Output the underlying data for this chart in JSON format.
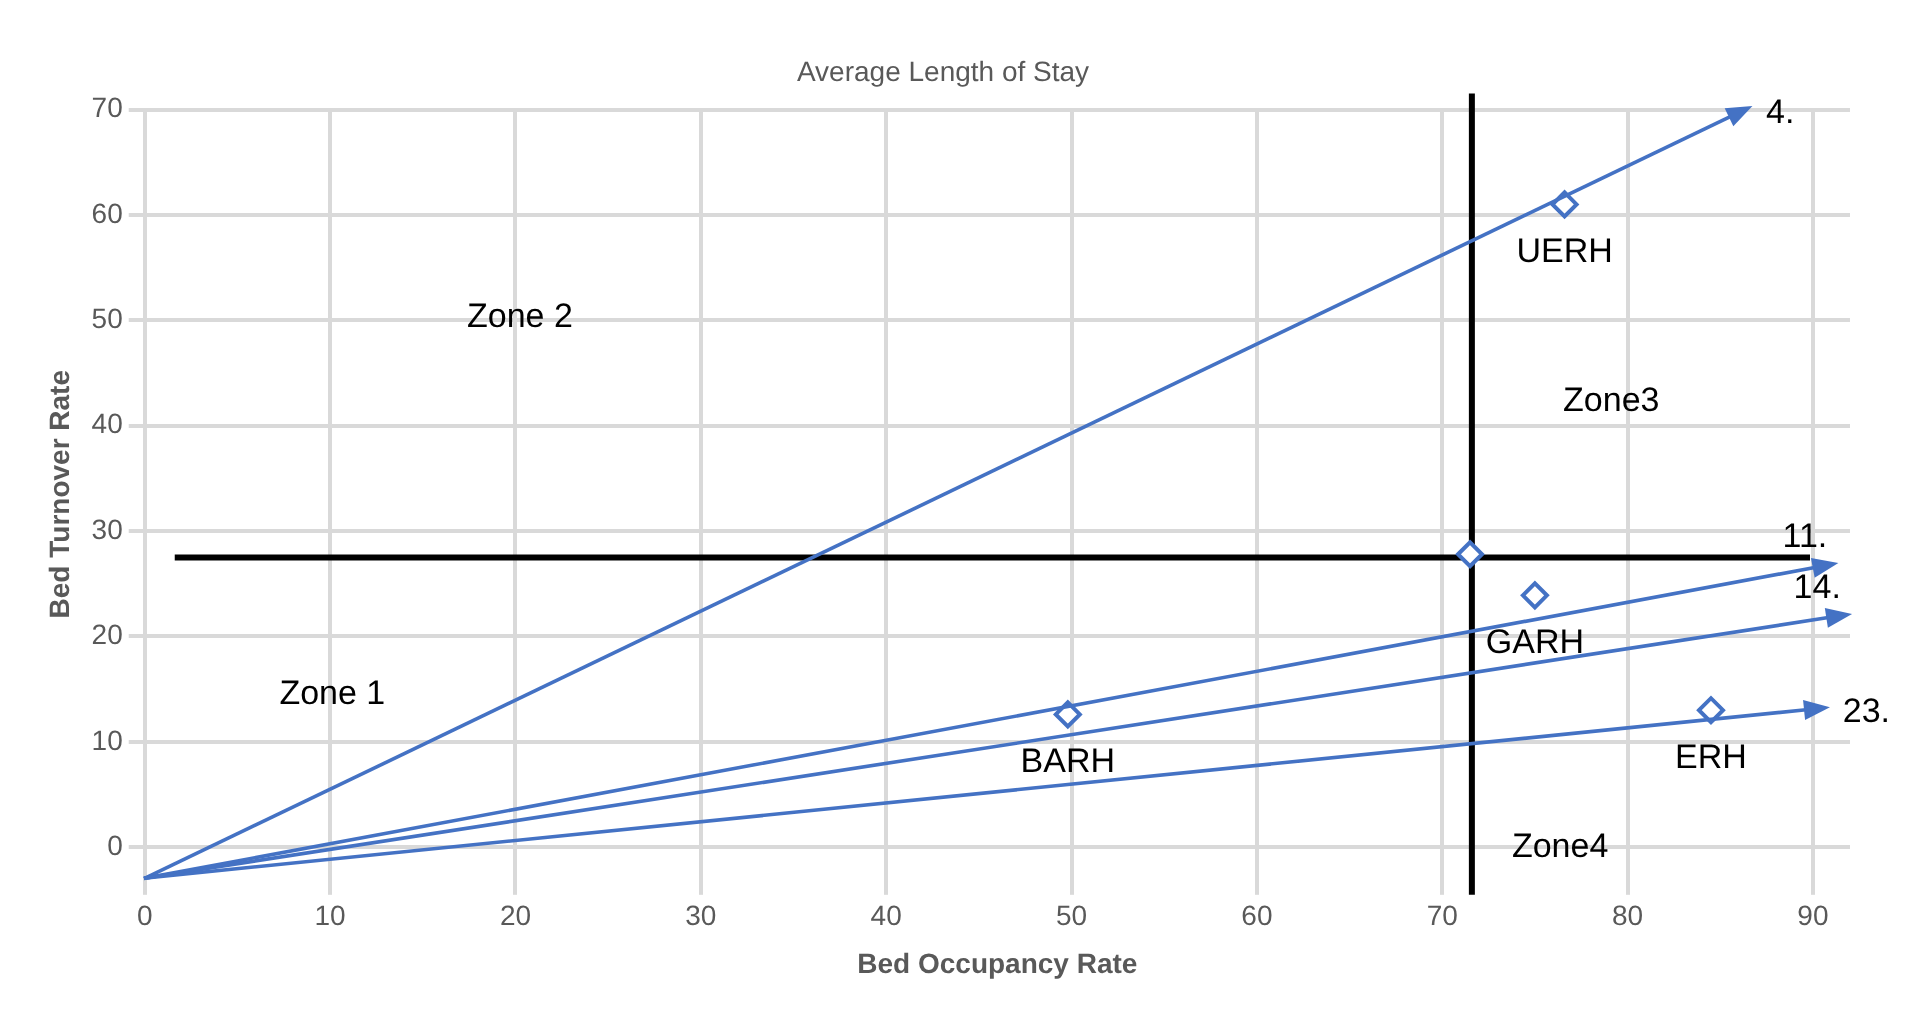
{
  "chart_data": {
    "type": "scatter",
    "title": "Average Length of Stay",
    "xlabel": "Bed Occupancy Rate",
    "ylabel": "Bed Turnover Rate",
    "xlim": [
      0,
      92
    ],
    "xticks": [
      0,
      10,
      20,
      30,
      40,
      50,
      60,
      70,
      80,
      90
    ],
    "ylim": [
      -3,
      70
    ],
    "yticks": [
      0,
      10,
      20,
      30,
      40,
      50,
      60,
      70
    ],
    "grid": true,
    "legend": false,
    "series": [
      {
        "type": "scatter",
        "color": "#4472c4",
        "marker": "diamond",
        "x": [
          76.6,
          71.5,
          75.0,
          49.8,
          84.5
        ],
        "values": [
          61.0,
          27.8,
          23.9,
          12.6,
          13.0
        ]
      }
    ],
    "ref_lines": [
      {
        "axis": "y",
        "value": 27.5,
        "color": "#000000"
      },
      {
        "axis": "x",
        "value": 71.6,
        "color": "#000000"
      }
    ],
    "annotations": [
      "Zone 2",
      "Zone 1",
      "Zone3",
      "Zone4",
      {
        "text": "UERH",
        "x": 76.6,
        "y": 61.0
      },
      {
        "text": "GARH",
        "x": 75.0,
        "y": 23.9
      },
      {
        "text": "BARH",
        "x": 49.8,
        "y": 12.6
      },
      {
        "text": "ERH",
        "x": 84.5,
        "y": 13.0
      },
      "4.",
      "11.",
      "14.",
      "23."
    ]
  }
}
